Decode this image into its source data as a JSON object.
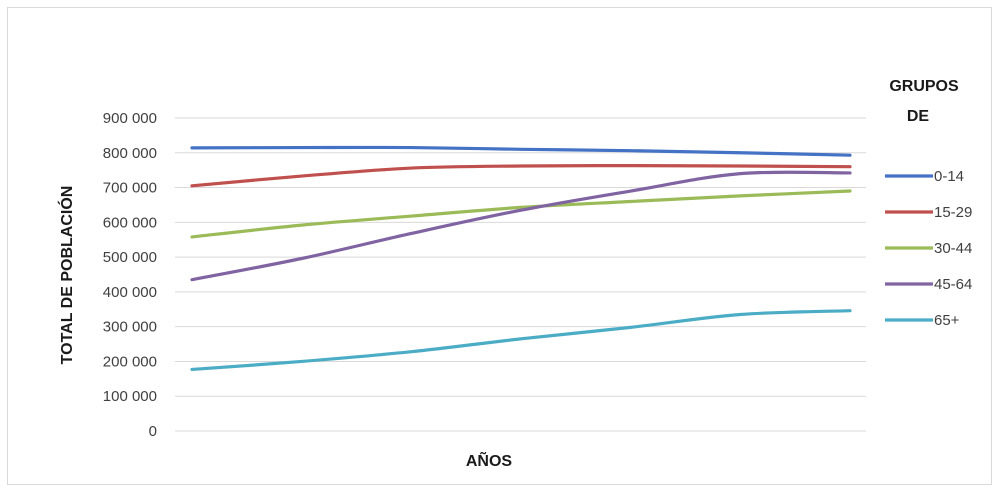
{
  "chart_data": {
    "type": "line",
    "title": "",
    "xlabel": "AÑOS",
    "ylabel": "TOTAL DE POBLACIÓN",
    "ylim": [
      0,
      900000
    ],
    "yticks": [
      0,
      100000,
      200000,
      300000,
      400000,
      500000,
      600000,
      700000,
      800000,
      900000
    ],
    "ytick_labels": [
      "0",
      "100 000",
      "200 000",
      "300 000",
      "400 000",
      "500 000",
      "600 000",
      "700 000",
      "800 000",
      "900 000"
    ],
    "grid": true,
    "legend": {
      "title_lines": [
        "GRUPOS",
        "DE"
      ],
      "position": "right"
    },
    "x": [
      1,
      2,
      3,
      4,
      5,
      6,
      7
    ],
    "series": [
      {
        "name": "0-14",
        "color": "#4472c4",
        "values": [
          814000,
          815000,
          815000,
          810000,
          806000,
          800000,
          793000
        ]
      },
      {
        "name": "15-29",
        "color": "#c0504d",
        "values": [
          705000,
          733000,
          756000,
          762000,
          763000,
          762000,
          760000
        ]
      },
      {
        "name": "30-44",
        "color": "#9bbb59",
        "values": [
          558000,
          592000,
          618000,
          643000,
          660000,
          676000,
          690000
        ]
      },
      {
        "name": "45-64",
        "color": "#8064a2",
        "values": [
          435000,
          496000,
          568000,
          635000,
          690000,
          740000,
          742000
        ]
      },
      {
        "name": "65+",
        "color": "#4bacc6",
        "values": [
          177000,
          200000,
          228000,
          265000,
          298000,
          335000,
          346000
        ]
      }
    ]
  }
}
